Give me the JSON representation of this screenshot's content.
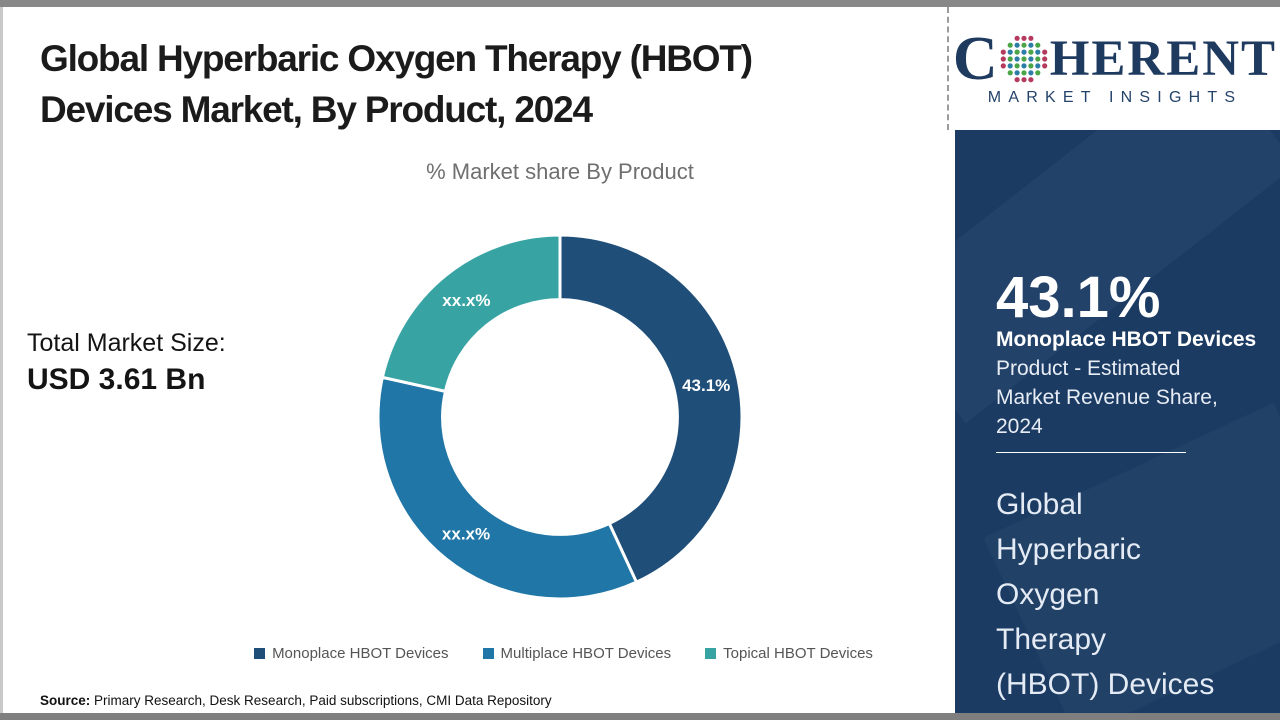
{
  "header": {
    "title_line1": "Global Hyperbaric Oxygen Therapy (HBOT)",
    "title_line2": "Devices Market, By Product, 2024"
  },
  "total_market": {
    "label": "Total Market Size:",
    "value": "USD 3.61 Bn"
  },
  "chart_data": {
    "type": "pie",
    "subtype": "donut",
    "title": "% Market share By Product",
    "categories": [
      "Monoplace HBOT Devices",
      "Multiplace HBOT Devices",
      "Topical HBOT Devices"
    ],
    "values": [
      43.1,
      35.4,
      21.5
    ],
    "display_labels": [
      "43.1%",
      "xx.x%",
      "xx.x%"
    ],
    "colors": [
      "#1F4E79",
      "#2076A6",
      "#38A3A3"
    ],
    "donut_hole_ratio": 0.645,
    "start_angle_deg": 0,
    "direction": "clockwise",
    "legend_position": "bottom",
    "label_color": "#FFFFFF"
  },
  "source": {
    "label": "Source:",
    "text": " Primary Research, Desk Research, Paid subscriptions, CMI Data Repository"
  },
  "logo": {
    "brand_c": "C",
    "brand_rest": "HERENT",
    "subtitle": "MARKET INSIGHTS",
    "navy": "#1e3a5f",
    "dot_colors": {
      "edge": "#b43a5e",
      "green": "#4aa546",
      "teal": "#2d7ea6"
    }
  },
  "side_panel": {
    "bg_color": "#1B3B63",
    "stat_value": "43.1%",
    "stat_bold": "Monoplace HBOT Devices",
    "stat_desc_lines": [
      "Product - Estimated",
      "Market Revenue Share,",
      "2024"
    ],
    "footer_lines": [
      "Global",
      "Hyperbaric",
      "Oxygen",
      "Therapy",
      "(HBOT) Devices"
    ]
  }
}
